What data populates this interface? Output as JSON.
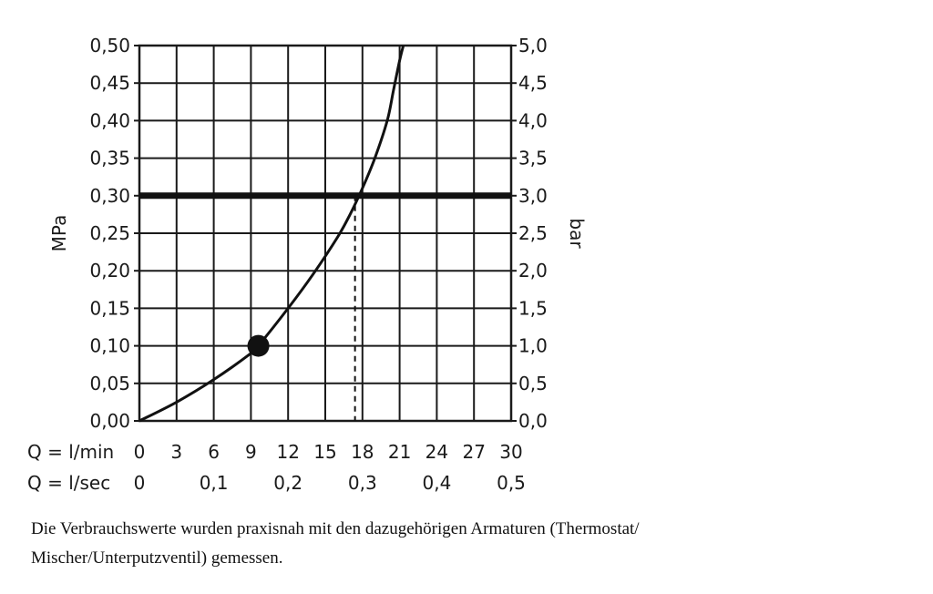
{
  "chart_data": {
    "type": "line",
    "left_axis_label": "MPa",
    "right_axis_label": "bar",
    "left_ticks": [
      "0,00",
      "0,05",
      "0,10",
      "0,15",
      "0,20",
      "0,25",
      "0,30",
      "0,35",
      "0,40",
      "0,45",
      "0,50"
    ],
    "right_ticks": [
      "0,0",
      "0,5",
      "1,0",
      "1,5",
      "2,0",
      "2,5",
      "3,0",
      "3,5",
      "4,0",
      "4,5",
      "5,0"
    ],
    "x_row1_label": "Q = l/min",
    "x_row1_ticks": [
      "0",
      "3",
      "6",
      "9",
      "12",
      "15",
      "18",
      "21",
      "24",
      "27",
      "30"
    ],
    "x_row2_label": "Q = l/sec",
    "x_row2_ticks": [
      "0",
      "0,1",
      "0,2",
      "0,3",
      "0,4",
      "0,5"
    ],
    "xlim": [
      0,
      30
    ],
    "ylim": [
      0,
      0.5
    ],
    "grid": true,
    "series": [
      {
        "x": [
          0,
          3,
          6,
          9,
          9.6,
          12,
          14,
          16,
          17,
          18,
          19,
          20,
          20.5,
          21,
          21.3
        ],
        "y": [
          0,
          0.025,
          0.055,
          0.09,
          0.1,
          0.15,
          0.195,
          0.245,
          0.275,
          0.31,
          0.35,
          0.4,
          0.44,
          0.48,
          0.5
        ]
      }
    ],
    "highlight_point": {
      "x": 9.6,
      "y": 0.1
    },
    "reference_line": {
      "y": 0.3
    },
    "drop_line": {
      "x": 17.4,
      "y": 0.3
    }
  },
  "caption": {
    "line1": "Die Verbrauchswerte wurden praxisnah mit den dazugehörigen Armaturen (Thermostat/",
    "line2": "Mischer/Unterputzventil) gemessen."
  }
}
